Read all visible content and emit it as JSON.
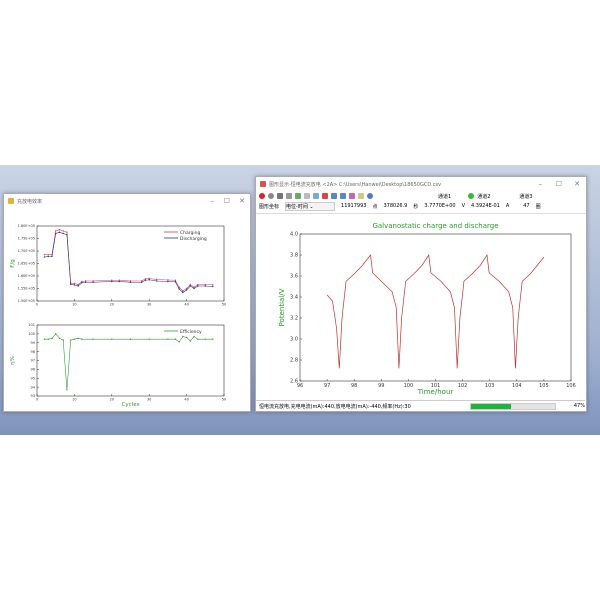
{
  "left_window": {
    "title": "充放电效率"
  },
  "right_window": {
    "title": "图形显示-恒电流充放电 <2A> C:\\Users\\Hanwei\\Desktop\\18650GCD.csv",
    "channels": [
      "通道1",
      "通道2",
      "通道3"
    ],
    "info": {
      "coord_label": "图形坐标",
      "coord_select": "电位-时间",
      "points": "11917993",
      "points_unit": "点",
      "time": "378026.9",
      "time_unit": "秒",
      "voltage": "3.7770E+00",
      "voltage_unit": "V",
      "current": "4.3924E-01",
      "current_unit": "A",
      "cycles": "47",
      "cycles_unit": "圈"
    },
    "status": "恒电流充放电,充电电流(mA):440,放电电流(mA):-440,频率(Hz):30",
    "progress": 47,
    "progress_label": "47%",
    "progress_color": "#1db43a"
  },
  "chart_data": [
    {
      "type": "line",
      "ylabel": "F/g",
      "xlim": [
        0,
        50
      ],
      "ylim": [
        150000,
        180000
      ],
      "xticks": [
        "0",
        "10",
        "20",
        "30",
        "40",
        "50"
      ],
      "yticks": [
        "1.50E+05",
        "1.55E+05",
        "1.60E+05",
        "1.65E+05",
        "1.70E+05",
        "1.75E+05",
        "1.80E+05"
      ],
      "x": [
        2,
        3,
        4,
        5,
        6,
        7,
        8,
        9,
        10,
        11,
        12,
        13,
        15,
        20,
        22,
        25,
        28,
        29,
        30,
        32,
        35,
        37,
        38,
        39,
        40,
        41,
        42,
        43,
        45,
        47
      ],
      "series": [
        {
          "name": "Charging",
          "color": "#d04060",
          "values": [
            168500,
            168500,
            168500,
            178000,
            178500,
            178000,
            177500,
            157200,
            157000,
            156600,
            157800,
            158000,
            158000,
            158300,
            158300,
            158000,
            158000,
            158900,
            159000,
            158600,
            158400,
            158300,
            155500,
            154000,
            155000,
            156600,
            155500,
            156500,
            156500,
            156500
          ]
        },
        {
          "name": "Discharging",
          "color": "#303080",
          "values": [
            167600,
            167800,
            167800,
            177000,
            177500,
            177000,
            176500,
            156700,
            156400,
            156000,
            157300,
            157500,
            157500,
            157800,
            157800,
            157500,
            157500,
            158300,
            158500,
            158000,
            157800,
            157700,
            154800,
            153400,
            154400,
            156000,
            155000,
            156000,
            156000,
            155800
          ]
        }
      ]
    },
    {
      "type": "line",
      "xlabel": "Cycles",
      "ylabel": "η%",
      "xlim": [
        0,
        50
      ],
      "ylim": [
        93,
        101
      ],
      "xticks": [
        "0",
        "10",
        "20",
        "30",
        "40",
        "50"
      ],
      "yticks": [
        "93",
        "94",
        "95",
        "96",
        "97",
        "98",
        "99",
        "100",
        "101"
      ],
      "x": [
        2,
        3,
        4,
        5,
        6,
        7,
        8,
        9,
        10,
        11,
        12,
        15,
        20,
        25,
        30,
        35,
        37,
        38,
        39,
        40,
        41,
        42,
        43,
        45,
        47
      ],
      "series": [
        {
          "name": "Efficiency",
          "color": "#3a9a3a",
          "values": [
            99.4,
            99.4,
            99.5,
            100,
            99.5,
            99.3,
            93.7,
            99.3,
            99.4,
            99.5,
            99.4,
            99.4,
            99.4,
            99.4,
            99.4,
            99.4,
            99.4,
            99.1,
            99.7,
            99.6,
            99.2,
            99.7,
            99.4,
            99.4,
            99.4
          ]
        }
      ]
    },
    {
      "type": "line",
      "title": "Galvanostatic charge and discharge",
      "xlabel": "Time/hour",
      "ylabel": "Potential/V",
      "xlim": [
        96,
        106
      ],
      "ylim": [
        2.6,
        4.0
      ],
      "xticks": [
        "96",
        "97",
        "98",
        "99",
        "100",
        "101",
        "102",
        "103",
        "104",
        "105",
        "106"
      ],
      "yticks": [
        "2.6",
        "2.8",
        "3.0",
        "3.2",
        "3.4",
        "3.6",
        "3.8",
        "4.0"
      ],
      "x": [
        97,
        97.2,
        97.35,
        97.45,
        97.55,
        97.7,
        98,
        98.3,
        98.6,
        98.68,
        99,
        99.4,
        99.55,
        99.65,
        99.75,
        99.9,
        100.2,
        100.5,
        100.75,
        100.83,
        101.2,
        101.55,
        101.7,
        101.8,
        101.9,
        102.05,
        102.35,
        102.65,
        102.9,
        102.98,
        103.35,
        103.7,
        103.85,
        103.95,
        104.05,
        104.2,
        104.5,
        104.75,
        105
      ],
      "series": [
        {
          "color": "#c03030",
          "values": [
            3.42,
            3.36,
            3.1,
            2.72,
            3.2,
            3.55,
            3.62,
            3.7,
            3.8,
            3.63,
            3.55,
            3.45,
            3.3,
            2.72,
            3.2,
            3.55,
            3.62,
            3.7,
            3.8,
            3.63,
            3.55,
            3.45,
            3.3,
            2.72,
            3.2,
            3.55,
            3.62,
            3.7,
            3.8,
            3.63,
            3.55,
            3.45,
            3.3,
            2.72,
            3.2,
            3.55,
            3.62,
            3.7,
            3.78
          ]
        }
      ]
    }
  ]
}
